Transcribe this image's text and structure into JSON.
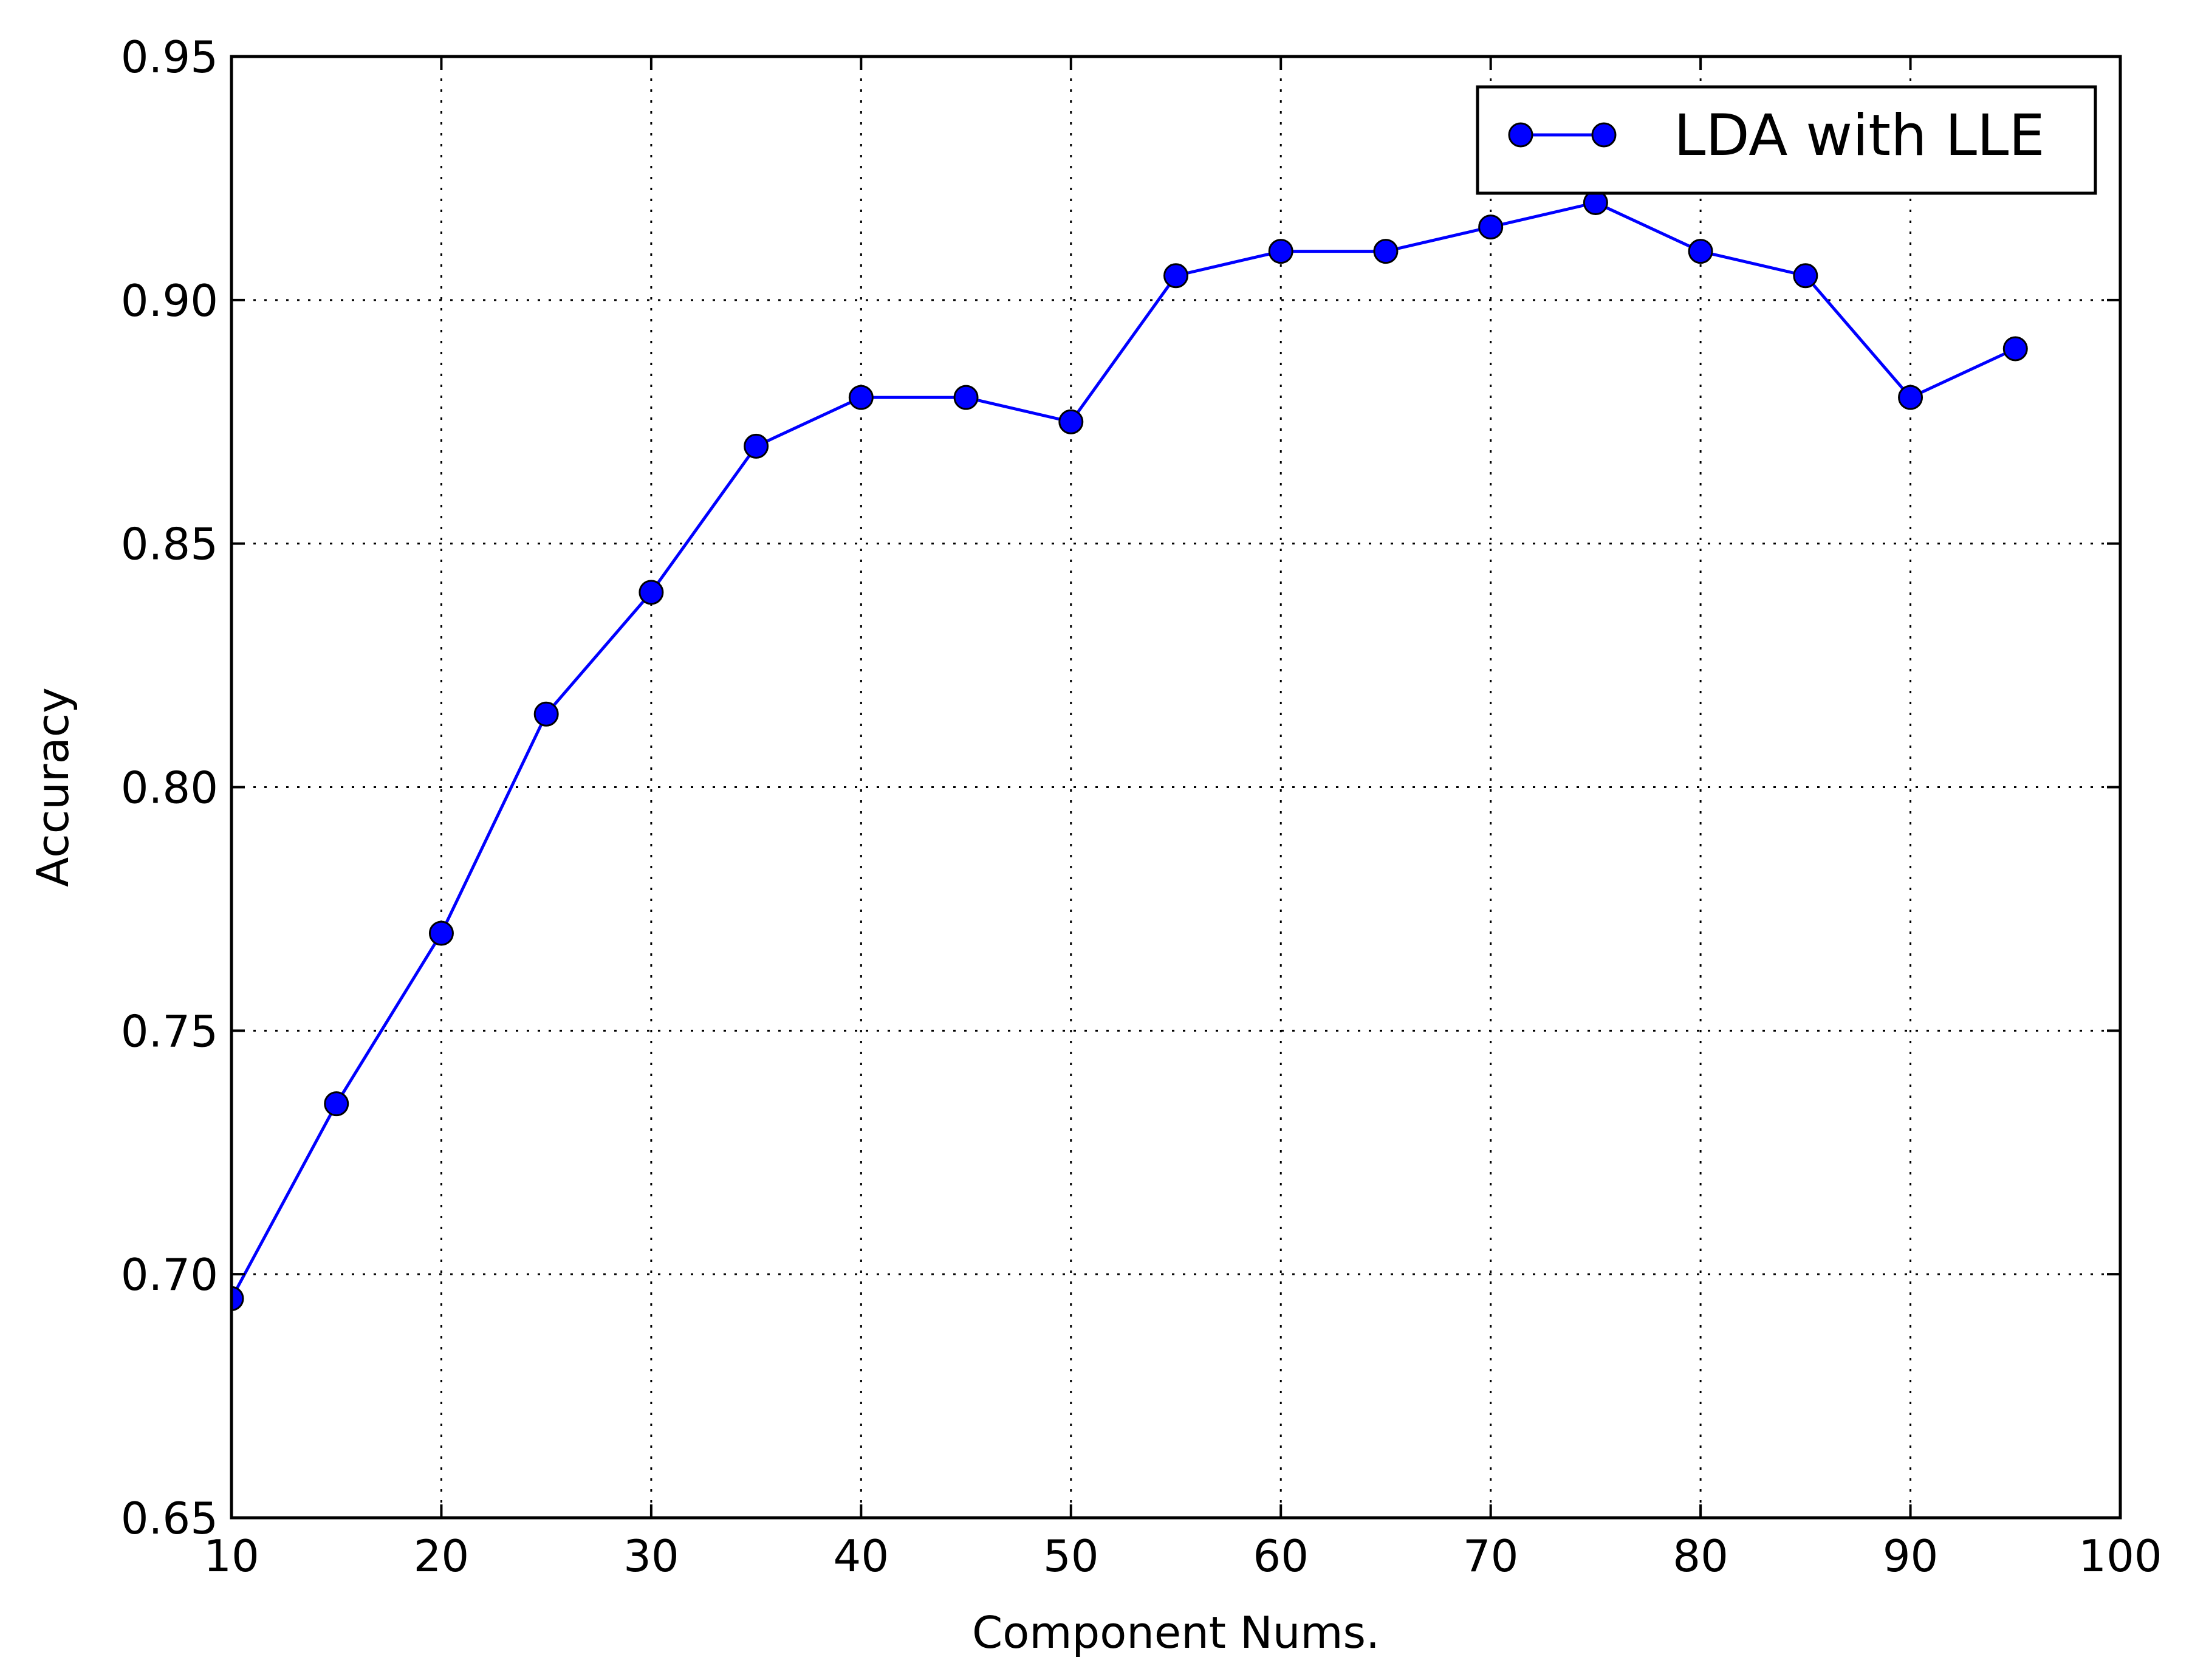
{
  "chart_data": {
    "type": "line",
    "title": "",
    "xlabel": "Component Nums.",
    "ylabel": "Accuracy",
    "xlim": [
      10,
      100
    ],
    "ylim": [
      0.65,
      0.95
    ],
    "x_ticks": [
      "10",
      "20",
      "30",
      "40",
      "50",
      "60",
      "70",
      "80",
      "90",
      "100"
    ],
    "y_ticks": [
      "0.65",
      "0.70",
      "0.75",
      "0.80",
      "0.85",
      "0.90",
      "0.95"
    ],
    "grid": true,
    "legend_position": "top-right",
    "series": [
      {
        "name": "LDA with LLE",
        "color": "#0000ff",
        "marker": "circle",
        "x": [
          10,
          15,
          20,
          25,
          30,
          35,
          40,
          45,
          50,
          55,
          60,
          65,
          70,
          75,
          80,
          85,
          90,
          95
        ],
        "y": [
          0.695,
          0.735,
          0.77,
          0.815,
          0.84,
          0.87,
          0.88,
          0.88,
          0.875,
          0.905,
          0.91,
          0.91,
          0.915,
          0.92,
          0.91,
          0.905,
          0.88,
          0.89
        ]
      }
    ]
  }
}
